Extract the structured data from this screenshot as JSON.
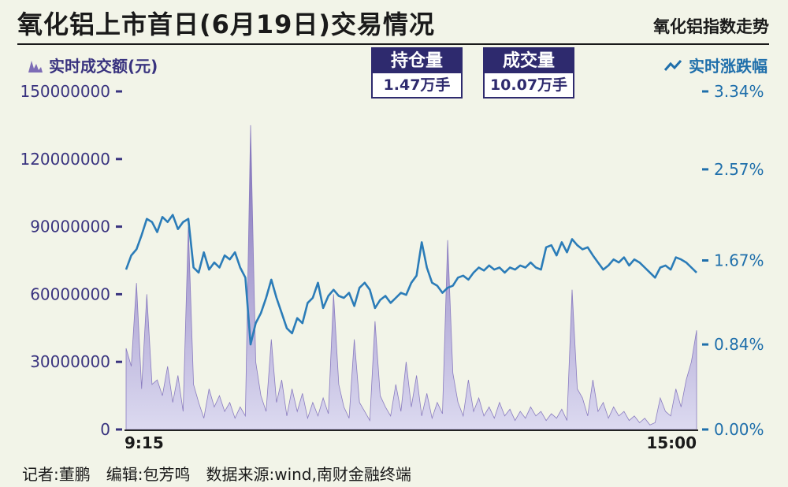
{
  "title": "氧化铝上市首日(6月19日)交易情况",
  "subtitle_right": "氧化铝指数走势",
  "legend": {
    "volume_label": "实时成交额(元)",
    "change_label": "实时涨跌幅"
  },
  "boxes": [
    {
      "label": "持仓量",
      "value": "1.47万手"
    },
    {
      "label": "成交量",
      "value": "10.07万手"
    }
  ],
  "footer": "记者:董鹏　编辑:包芳鸣　数据来源:wind,南财金融终端",
  "colors": {
    "line": "#2b7cb8",
    "area_top": "#7d6cb6",
    "area_bottom": "#dcdaf0",
    "left_axis": "#39337f",
    "right_axis": "#1f6fab"
  },
  "chart_data": {
    "type": "area+line",
    "x_start_label": "9:15",
    "x_end_label": "15:00",
    "left_axis": {
      "label": "实时成交额(元)",
      "ticks": [
        "150000000",
        "120000000",
        "90000000",
        "60000000",
        "30000000",
        "0"
      ],
      "tick_values": [
        150000000,
        120000000,
        90000000,
        60000000,
        30000000,
        0
      ],
      "range": [
        0,
        150000000
      ]
    },
    "right_axis": {
      "label": "实时涨跌幅",
      "ticks": [
        "3.34%",
        "2.57%",
        "1.67%",
        "0.84%",
        "0.00%"
      ],
      "tick_values": [
        3.34,
        2.57,
        1.67,
        0.84,
        0.0
      ],
      "range": [
        0,
        3.34
      ]
    },
    "series": [
      {
        "name": "实时成交额(元)",
        "kind": "area",
        "values": [
          36000000,
          28000000,
          65000000,
          18000000,
          60000000,
          20000000,
          22000000,
          15000000,
          28000000,
          12000000,
          24000000,
          8000000,
          90000000,
          20000000,
          12000000,
          5000000,
          18000000,
          10000000,
          15000000,
          8000000,
          12000000,
          5000000,
          10000000,
          6000000,
          135000000,
          30000000,
          15000000,
          8000000,
          40000000,
          12000000,
          22000000,
          6000000,
          18000000,
          8000000,
          16000000,
          5000000,
          12000000,
          6000000,
          14000000,
          7000000,
          60000000,
          20000000,
          10000000,
          5000000,
          40000000,
          12000000,
          8000000,
          4000000,
          48000000,
          15000000,
          10000000,
          6000000,
          20000000,
          8000000,
          30000000,
          10000000,
          24000000,
          6000000,
          16000000,
          5000000,
          12000000,
          7000000,
          84000000,
          25000000,
          12000000,
          6000000,
          22000000,
          8000000,
          14000000,
          6000000,
          10000000,
          5000000,
          12000000,
          6000000,
          9000000,
          4000000,
          8000000,
          5000000,
          10000000,
          6000000,
          8000000,
          4000000,
          7000000,
          5000000,
          9000000,
          4000000,
          62000000,
          18000000,
          14000000,
          6000000,
          22000000,
          8000000,
          12000000,
          5000000,
          10000000,
          6000000,
          8000000,
          4000000,
          6000000,
          3000000,
          5000000,
          2000000,
          3000000,
          14000000,
          8000000,
          6000000,
          18000000,
          10000000,
          22000000,
          30000000,
          44000000
        ]
      },
      {
        "name": "实时涨跌幅",
        "kind": "line",
        "values": [
          1.58,
          1.72,
          1.78,
          1.92,
          2.08,
          2.05,
          1.95,
          2.1,
          2.05,
          2.12,
          1.98,
          2.05,
          2.08,
          1.6,
          1.55,
          1.75,
          1.58,
          1.65,
          1.6,
          1.72,
          1.68,
          1.75,
          1.6,
          1.5,
          0.84,
          1.05,
          1.15,
          1.3,
          1.48,
          1.3,
          1.15,
          1.0,
          0.95,
          1.1,
          1.05,
          1.25,
          1.3,
          1.45,
          1.2,
          1.32,
          1.38,
          1.32,
          1.3,
          1.35,
          1.22,
          1.4,
          1.45,
          1.38,
          1.2,
          1.28,
          1.32,
          1.25,
          1.3,
          1.35,
          1.33,
          1.45,
          1.52,
          1.85,
          1.6,
          1.45,
          1.42,
          1.35,
          1.4,
          1.42,
          1.5,
          1.52,
          1.48,
          1.55,
          1.6,
          1.57,
          1.62,
          1.58,
          1.6,
          1.55,
          1.6,
          1.58,
          1.62,
          1.6,
          1.65,
          1.6,
          1.58,
          1.8,
          1.82,
          1.72,
          1.85,
          1.75,
          1.88,
          1.82,
          1.78,
          1.8,
          1.72,
          1.65,
          1.58,
          1.62,
          1.68,
          1.65,
          1.7,
          1.62,
          1.68,
          1.65,
          1.6,
          1.55,
          1.5,
          1.6,
          1.62,
          1.58,
          1.7,
          1.68,
          1.65,
          1.6,
          1.55
        ]
      }
    ],
    "grid": false,
    "legend": "top"
  }
}
